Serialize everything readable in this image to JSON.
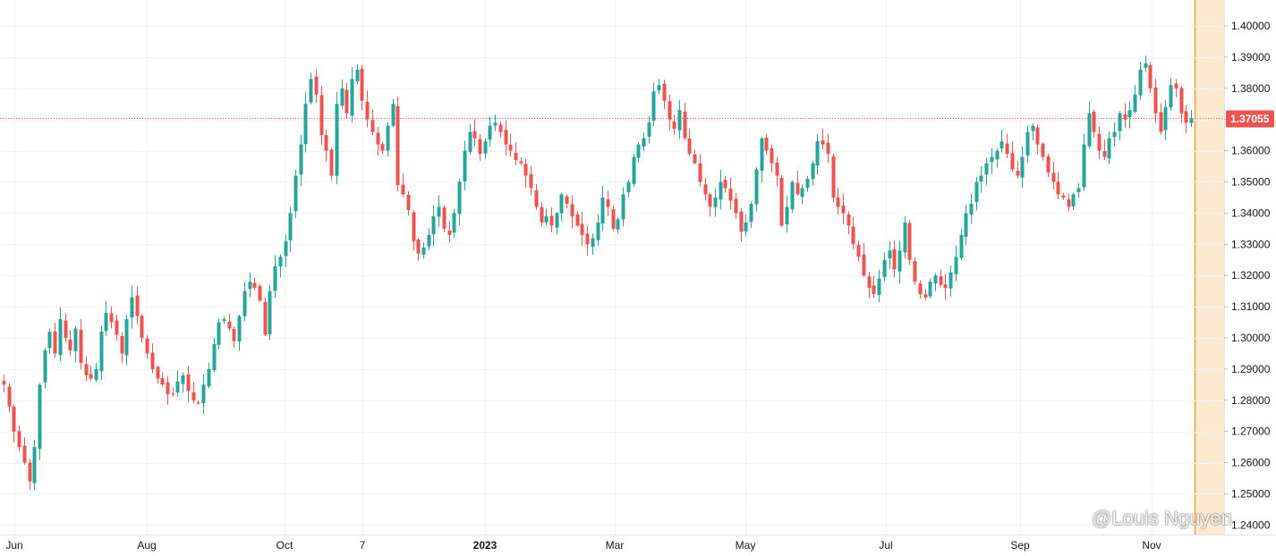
{
  "colors": {
    "up": "#26a69a",
    "down": "#ef5350",
    "grid": "#f0f3fa",
    "text": "#131722",
    "last_price_line": "#ef5350",
    "highlight_fill": "#fde9d0",
    "highlight_line": "#f7a13b"
  },
  "watermark": "@Louis Nguyen",
  "chart_data": {
    "type": "candlestick",
    "title": "",
    "y_axis": {
      "ticks": [
        "1.40000",
        "1.39000",
        "1.38000",
        "1.37000",
        "1.36000",
        "1.35000",
        "1.34000",
        "1.33000",
        "1.32000",
        "1.31000",
        "1.30000",
        "1.29000",
        "1.28000",
        "1.27000",
        "1.26000",
        "1.25000",
        "1.24000"
      ],
      "range": [
        1.24,
        1.4
      ],
      "position": "right"
    },
    "x_axis": {
      "ticks": [
        {
          "label": "Jun",
          "bold": false
        },
        {
          "label": "Aug",
          "bold": false
        },
        {
          "label": "Oct",
          "bold": false
        },
        {
          "label": "7",
          "bold": false
        },
        {
          "label": "2023",
          "bold": true
        },
        {
          "label": "Mar",
          "bold": false
        },
        {
          "label": "May",
          "bold": false
        },
        {
          "label": "Jul",
          "bold": false
        },
        {
          "label": "Sep",
          "bold": false
        },
        {
          "label": "Nov",
          "bold": false
        }
      ]
    },
    "last_price": {
      "value": 1.37055,
      "label": "1.37055"
    },
    "grid": true,
    "closes": [
      1.285,
      1.278,
      1.27,
      1.265,
      1.26,
      1.254,
      1.265,
      1.285,
      1.296,
      1.302,
      1.295,
      1.306,
      1.3,
      1.296,
      1.303,
      1.292,
      1.288,
      1.287,
      1.29,
      1.302,
      1.308,
      1.305,
      1.301,
      1.295,
      1.306,
      1.313,
      1.307,
      1.3,
      1.295,
      1.29,
      1.287,
      1.285,
      1.282,
      1.282,
      1.286,
      1.288,
      1.283,
      1.28,
      1.279,
      1.285,
      1.29,
      1.298,
      1.305,
      1.306,
      1.303,
      1.299,
      1.307,
      1.315,
      1.318,
      1.316,
      1.312,
      1.301,
      1.315,
      1.323,
      1.326,
      1.331,
      1.34,
      1.352,
      1.362,
      1.375,
      1.383,
      1.378,
      1.365,
      1.36,
      1.352,
      1.375,
      1.38,
      1.372,
      1.383,
      1.386,
      1.376,
      1.37,
      1.366,
      1.362,
      1.36,
      1.368,
      1.375,
      1.349,
      1.346,
      1.341,
      1.331,
      1.327,
      1.329,
      1.333,
      1.339,
      1.342,
      1.335,
      1.333,
      1.34,
      1.35,
      1.36,
      1.366,
      1.364,
      1.359,
      1.363,
      1.368,
      1.369,
      1.366,
      1.362,
      1.36,
      1.357,
      1.356,
      1.352,
      1.348,
      1.342,
      1.337,
      1.339,
      1.336,
      1.34,
      1.346,
      1.343,
      1.339,
      1.336,
      1.333,
      1.33,
      1.332,
      1.337,
      1.345,
      1.342,
      1.335,
      1.338,
      1.346,
      1.35,
      1.358,
      1.362,
      1.364,
      1.369,
      1.379,
      1.381,
      1.376,
      1.37,
      1.367,
      1.373,
      1.364,
      1.359,
      1.356,
      1.35,
      1.346,
      1.342,
      1.345,
      1.35,
      1.348,
      1.344,
      1.34,
      1.334,
      1.337,
      1.343,
      1.354,
      1.364,
      1.36,
      1.356,
      1.352,
      1.336,
      1.342,
      1.35,
      1.346,
      1.348,
      1.351,
      1.356,
      1.363,
      1.362,
      1.359,
      1.345,
      1.342,
      1.34,
      1.336,
      1.33,
      1.326,
      1.32,
      1.316,
      1.314,
      1.319,
      1.325,
      1.328,
      1.322,
      1.328,
      1.337,
      1.325,
      1.318,
      1.314,
      1.313,
      1.318,
      1.32,
      1.317,
      1.316,
      1.321,
      1.326,
      1.333,
      1.34,
      1.343,
      1.35,
      1.352,
      1.356,
      1.358,
      1.36,
      1.363,
      1.359,
      1.354,
      1.352,
      1.358,
      1.366,
      1.368,
      1.362,
      1.358,
      1.353,
      1.35,
      1.346,
      1.345,
      1.342,
      1.346,
      1.348,
      1.362,
      1.372,
      1.366,
      1.36,
      1.358,
      1.364,
      1.366,
      1.372,
      1.37,
      1.373,
      1.378,
      1.386,
      1.388,
      1.38,
      1.372,
      1.366,
      1.374,
      1.381,
      1.38,
      1.372,
      1.369,
      1.3705
    ]
  }
}
